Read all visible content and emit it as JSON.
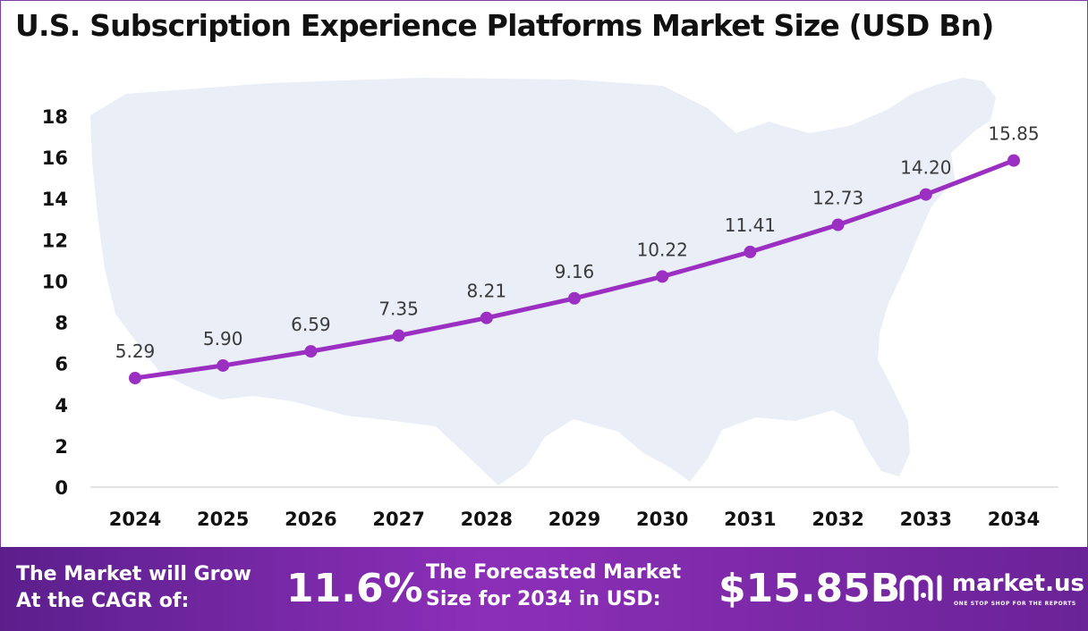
{
  "colors": {
    "line": "#9b2fc2",
    "marker": "#9b2fc2",
    "axis": "#d9d9d9",
    "map": "#e9eef7",
    "footer_start": "#5b1f8c",
    "footer_end": "#8c2fb8"
  },
  "chart_data": {
    "type": "line",
    "title": "U.S. Subscription Experience Platforms Market Size (USD Bn)",
    "categories": [
      "2024",
      "2025",
      "2026",
      "2027",
      "2028",
      "2029",
      "2030",
      "2031",
      "2032",
      "2033",
      "2034"
    ],
    "values": [
      5.29,
      5.9,
      6.59,
      7.35,
      8.21,
      9.16,
      10.22,
      11.41,
      12.73,
      14.2,
      15.85
    ],
    "value_labels": [
      "5.29",
      "5.90",
      "6.59",
      "7.35",
      "8.21",
      "9.16",
      "10.22",
      "11.41",
      "12.73",
      "14.20",
      "15.85"
    ],
    "ylim": [
      0,
      18
    ],
    "yticks": [
      "0",
      "2",
      "4",
      "6",
      "8",
      "10",
      "12",
      "14",
      "16",
      "18"
    ],
    "xlabel": "",
    "ylabel": "",
    "grid": false,
    "legend": "none",
    "background": "map-of-usa"
  },
  "footer": {
    "cagr_label_line1": "The Market will Grow",
    "cagr_label_line2": "At the CAGR of:",
    "cagr_value": "11.6%",
    "forecast_label_line1": "The Forecasted Market",
    "forecast_label_line2": "Size for 2034 in USD:",
    "forecast_value": "$15.85B"
  },
  "logo": {
    "icon": "market-us-logo-icon",
    "name": "market.us",
    "tagline": "ONE STOP SHOP FOR THE REPORTS"
  }
}
